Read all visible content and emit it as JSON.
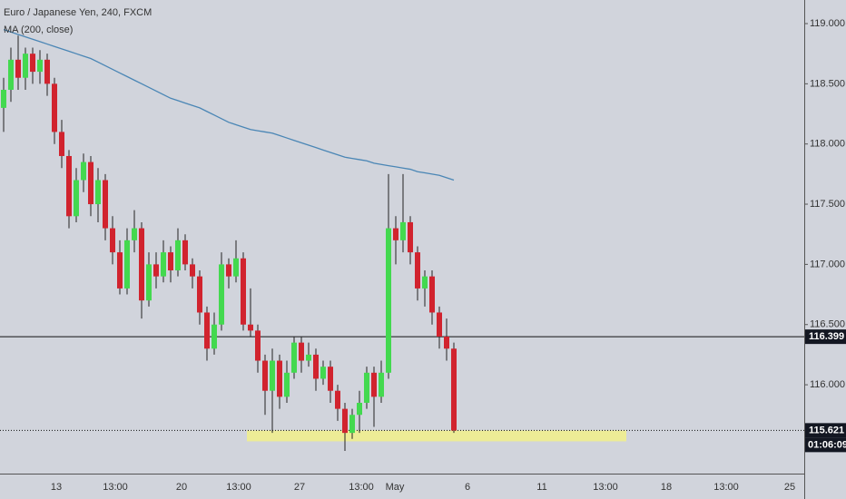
{
  "chart_data": {
    "type": "candlestick",
    "title": "Euro / Japanese Yen, 240, FXCM",
    "indicator_label": "MA (200, close)",
    "up_color": "#43d94f",
    "down_color": "#d1232e",
    "ma_color": "#4a86b5",
    "ylim": [
      115.262,
      119.196
    ],
    "yticks": [
      {
        "value": 116,
        "label": "116.000"
      },
      {
        "value": 116.5,
        "label": "116.500"
      },
      {
        "value": 117,
        "label": "117.000"
      },
      {
        "value": 117.5,
        "label": "117.500"
      },
      {
        "value": 118,
        "label": "118.000"
      },
      {
        "value": 118.5,
        "label": "118.500"
      },
      {
        "value": 119,
        "label": "119.000"
      }
    ],
    "x_labels": [
      "13",
      "13:00",
      "20",
      "13:00",
      "27",
      "13:00",
      "May",
      "6",
      "11",
      "13:00",
      "18",
      "13:00",
      "25"
    ],
    "ohlc": [
      [
        118.3,
        118.55,
        118.1,
        118.45
      ],
      [
        118.45,
        118.8,
        118.35,
        118.7
      ],
      [
        118.7,
        118.9,
        118.45,
        118.55
      ],
      [
        118.55,
        118.8,
        118.45,
        118.75
      ],
      [
        118.75,
        118.8,
        118.5,
        118.6
      ],
      [
        118.6,
        118.78,
        118.5,
        118.7
      ],
      [
        118.7,
        118.75,
        118.4,
        118.5
      ],
      [
        118.5,
        118.55,
        118.0,
        118.1
      ],
      [
        118.1,
        118.2,
        117.8,
        117.9
      ],
      [
        117.9,
        117.95,
        117.3,
        117.4
      ],
      [
        117.4,
        117.8,
        117.35,
        117.7
      ],
      [
        117.7,
        117.92,
        117.6,
        117.85
      ],
      [
        117.85,
        117.9,
        117.4,
        117.5
      ],
      [
        117.5,
        117.8,
        117.35,
        117.7
      ],
      [
        117.7,
        117.75,
        117.2,
        117.3
      ],
      [
        117.3,
        117.4,
        117.0,
        117.1
      ],
      [
        117.1,
        117.2,
        116.75,
        116.8
      ],
      [
        116.8,
        117.3,
        116.75,
        117.2
      ],
      [
        117.2,
        117.45,
        117.1,
        117.3
      ],
      [
        117.3,
        117.35,
        116.55,
        116.7
      ],
      [
        116.7,
        117.1,
        116.65,
        117.0
      ],
      [
        117.0,
        117.1,
        116.8,
        116.9
      ],
      [
        116.9,
        117.2,
        116.85,
        117.1
      ],
      [
        117.1,
        117.15,
        116.85,
        116.95
      ],
      [
        116.95,
        117.3,
        116.9,
        117.2
      ],
      [
        117.2,
        117.25,
        116.95,
        117.0
      ],
      [
        117.0,
        117.05,
        116.8,
        116.9
      ],
      [
        116.9,
        116.95,
        116.5,
        116.6
      ],
      [
        116.6,
        116.65,
        116.2,
        116.3
      ],
      [
        116.3,
        116.6,
        116.25,
        116.5
      ],
      [
        116.5,
        117.1,
        116.45,
        117.0
      ],
      [
        117.0,
        117.05,
        116.8,
        116.9
      ],
      [
        116.9,
        117.2,
        116.85,
        117.05
      ],
      [
        117.05,
        117.1,
        116.45,
        116.5
      ],
      [
        116.5,
        116.8,
        116.4,
        116.45
      ],
      [
        116.45,
        116.5,
        116.1,
        116.2
      ],
      [
        116.2,
        116.25,
        115.75,
        115.95
      ],
      [
        115.95,
        116.3,
        115.6,
        116.2
      ],
      [
        116.2,
        116.25,
        115.8,
        115.9
      ],
      [
        115.9,
        116.2,
        115.85,
        116.1
      ],
      [
        116.1,
        116.4,
        116.05,
        116.35
      ],
      [
        116.35,
        116.4,
        116.1,
        116.2
      ],
      [
        116.2,
        116.35,
        116.15,
        116.25
      ],
      [
        116.25,
        116.3,
        115.95,
        116.05
      ],
      [
        116.05,
        116.2,
        116.0,
        116.15
      ],
      [
        116.15,
        116.2,
        115.85,
        115.95
      ],
      [
        115.95,
        116.0,
        115.7,
        115.8
      ],
      [
        115.8,
        115.85,
        115.45,
        115.6
      ],
      [
        115.6,
        115.8,
        115.55,
        115.75
      ],
      [
        115.75,
        115.95,
        115.6,
        115.85
      ],
      [
        115.85,
        116.15,
        115.8,
        116.1
      ],
      [
        116.1,
        116.15,
        115.65,
        115.9
      ],
      [
        115.9,
        116.2,
        115.85,
        116.1
      ],
      [
        116.1,
        117.75,
        116.05,
        117.3
      ],
      [
        117.3,
        117.4,
        117.0,
        117.2
      ],
      [
        117.2,
        117.75,
        117.1,
        117.35
      ],
      [
        117.35,
        117.4,
        117.0,
        117.1
      ],
      [
        117.1,
        117.15,
        116.7,
        116.8
      ],
      [
        116.8,
        116.95,
        116.65,
        116.9
      ],
      [
        116.9,
        116.95,
        116.5,
        116.6
      ],
      [
        116.6,
        116.65,
        116.3,
        116.4
      ],
      [
        116.4,
        116.55,
        116.2,
        116.3
      ],
      [
        116.3,
        116.35,
        115.6,
        115.62
      ]
    ],
    "ma": [
      118.95,
      118.93,
      118.91,
      118.89,
      118.87,
      118.85,
      118.83,
      118.81,
      118.79,
      118.77,
      118.75,
      118.73,
      118.71,
      118.68,
      118.65,
      118.62,
      118.59,
      118.56,
      118.53,
      118.5,
      118.47,
      118.44,
      118.41,
      118.38,
      118.36,
      118.34,
      118.32,
      118.3,
      118.27,
      118.24,
      118.21,
      118.18,
      118.16,
      118.14,
      118.12,
      118.11,
      118.1,
      118.09,
      118.07,
      118.05,
      118.03,
      118.01,
      117.99,
      117.97,
      117.95,
      117.93,
      117.91,
      117.89,
      117.88,
      117.87,
      117.86,
      117.84,
      117.83,
      117.82,
      117.81,
      117.8,
      117.79,
      117.77,
      117.76,
      117.75,
      117.74,
      117.72,
      117.7
    ],
    "price_lines": [
      {
        "value": 116.399,
        "label": "116.399"
      },
      {
        "value": 115.621,
        "label": "115.621"
      }
    ],
    "countdown": "01:06:09",
    "zone": [
      115.53,
      115.62
    ]
  }
}
